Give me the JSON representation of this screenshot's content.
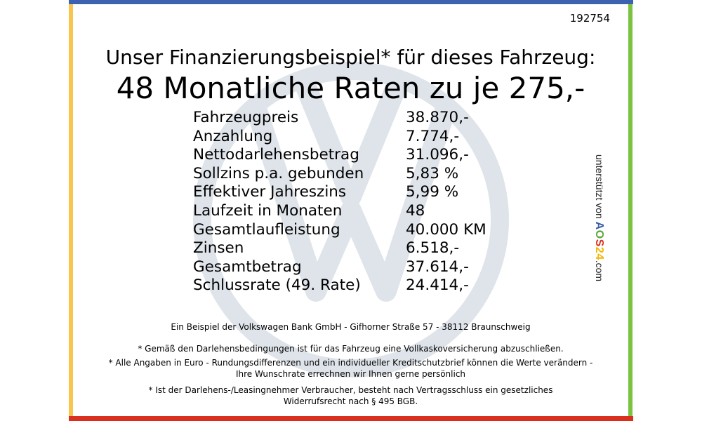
{
  "ad_id": "192754",
  "title": "Unser Finanzierungsbeispiel* für dieses Fahrzeug:",
  "headline": "48 Monatliche Raten zu je 275,-",
  "rows": [
    {
      "label": "Fahrzeugpreis",
      "value": "38.870,-"
    },
    {
      "label": "Anzahlung",
      "value": "7.774,-"
    },
    {
      "label": "Nettodarlehensbetrag",
      "value": "31.096,-"
    },
    {
      "label": "Sollzins p.a. gebunden",
      "value": "5,83 %"
    },
    {
      "label": "Effektiver Jahreszins",
      "value": "5,99 %"
    },
    {
      "label": "Laufzeit in Monaten",
      "value": "48"
    },
    {
      "label": "Gesamtlaufleistung",
      "value": "40.000 KM"
    },
    {
      "label": "Zinsen",
      "value": "6.518,-"
    },
    {
      "label": "Gesamtbetrag",
      "value": "37.614,-"
    },
    {
      "label": "Schlussrate (49. Rate)",
      "value": "24.414,-"
    }
  ],
  "bank_note": "Ein Beispiel der Volkswagen Bank GmbH - Gifhorner Straße 57 - 38112 Braunschweig",
  "footnotes": [
    "* Gemäß den Darlehensbedingungen ist für das Fahrzeug eine Vollkaskoversicherung abzuschließen.",
    "* Alle Angaben in Euro - Rundungsdifferenzen und ein individueller Kreditschutzbrief können die Werte verändern - Ihre Wunschrate errechnen wir Ihnen gerne persönlich",
    "* Ist der Darlehens-/Leasingnehmer Verbraucher, besteht nach Vertragsschluss ein gesetzliches Widerrufsrecht nach § 495 BGB."
  ],
  "sponsor": {
    "prefix": "unterstützt von",
    "brand": [
      "A",
      "O",
      "S",
      "2",
      "4"
    ],
    "suffix": ".com"
  },
  "colors": {
    "top": "#3d63b0",
    "left": "#f9c54f",
    "right": "#7cc241",
    "bottom": "#d9301f",
    "brand": [
      "#3a5ea8",
      "#5aa83a",
      "#d9301f",
      "#f2b705",
      "#f2b705"
    ],
    "watermark": "#dfe4eb"
  }
}
